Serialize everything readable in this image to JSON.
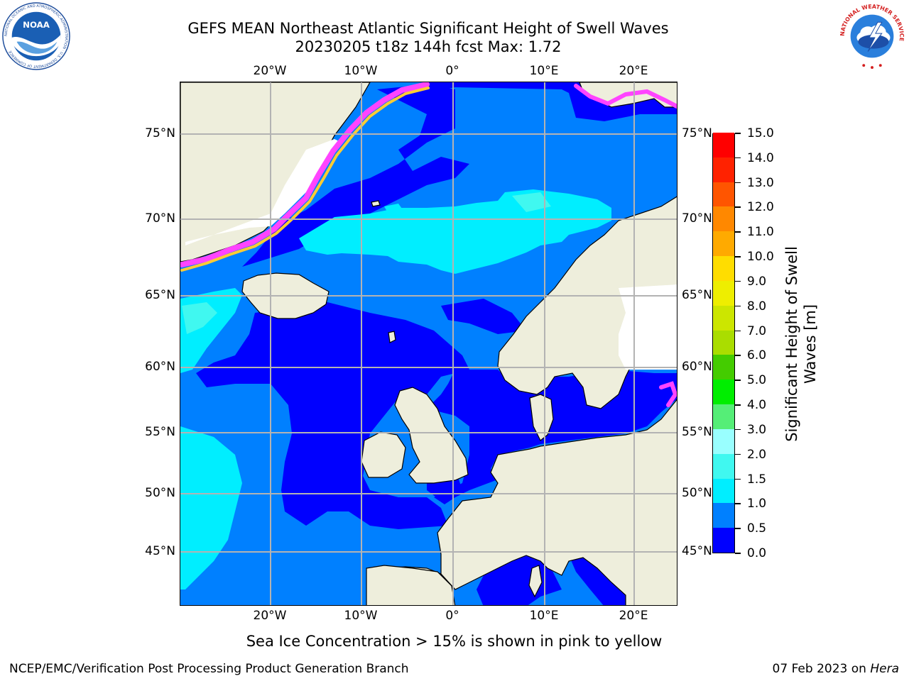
{
  "title": {
    "line1": "GEFS MEAN Northeast Atlantic Significant Height of Swell Waves",
    "line2": "20230205 t18z 144h fcst   Max: 1.72"
  },
  "map": {
    "longitude_labels": [
      "20°W",
      "10°W",
      "0°",
      "10°E",
      "20°E"
    ],
    "latitude_labels": [
      "75°N",
      "70°N",
      "65°N",
      "60°N",
      "55°N",
      "50°N",
      "45°N"
    ],
    "colors": {
      "land": "#eeeedc",
      "sea_ice_missing": "#ffffff",
      "grid": "#b3b3b3",
      "coastline": "#000000"
    }
  },
  "colorbar": {
    "title": "Significant Height of Swell\nWaves [m]",
    "tick_labels": [
      "0.0",
      "0.5",
      "1.0",
      "1.5",
      "2.0",
      "3.0",
      "4.0",
      "5.0",
      "6.0",
      "7.0",
      "8.0",
      "9.0",
      "10.0",
      "11.0",
      "12.0",
      "13.0",
      "14.0",
      "15.0"
    ],
    "colors": [
      "#0000ff",
      "#0080ff",
      "#00eeff",
      "#40f8f0",
      "#99ffff",
      "#55ee77",
      "#00ee00",
      "#44cc00",
      "#aadd00",
      "#cce600",
      "#eeee00",
      "#ffdd00",
      "#ffaa00",
      "#ff8800",
      "#ff5500",
      "#ff2200",
      "#ff0000"
    ]
  },
  "ice_note": "Sea Ice Concentration > 15% is shown in pink to yellow",
  "footer": {
    "left": "NCEP/EMC/Verification Post Processing Product Generation Branch",
    "date": "07 Feb 2023 on",
    "host": "Hera"
  },
  "logos": {
    "noaa_text": "NOAA",
    "noaa_ring_text": "NATIONAL OCEANIC AND ATMOSPHERIC ADMINISTRATION · U.S. DEPARTMENT OF COMMERCE",
    "nws_ring_text": "NATIONAL WEATHER SERVICE"
  }
}
